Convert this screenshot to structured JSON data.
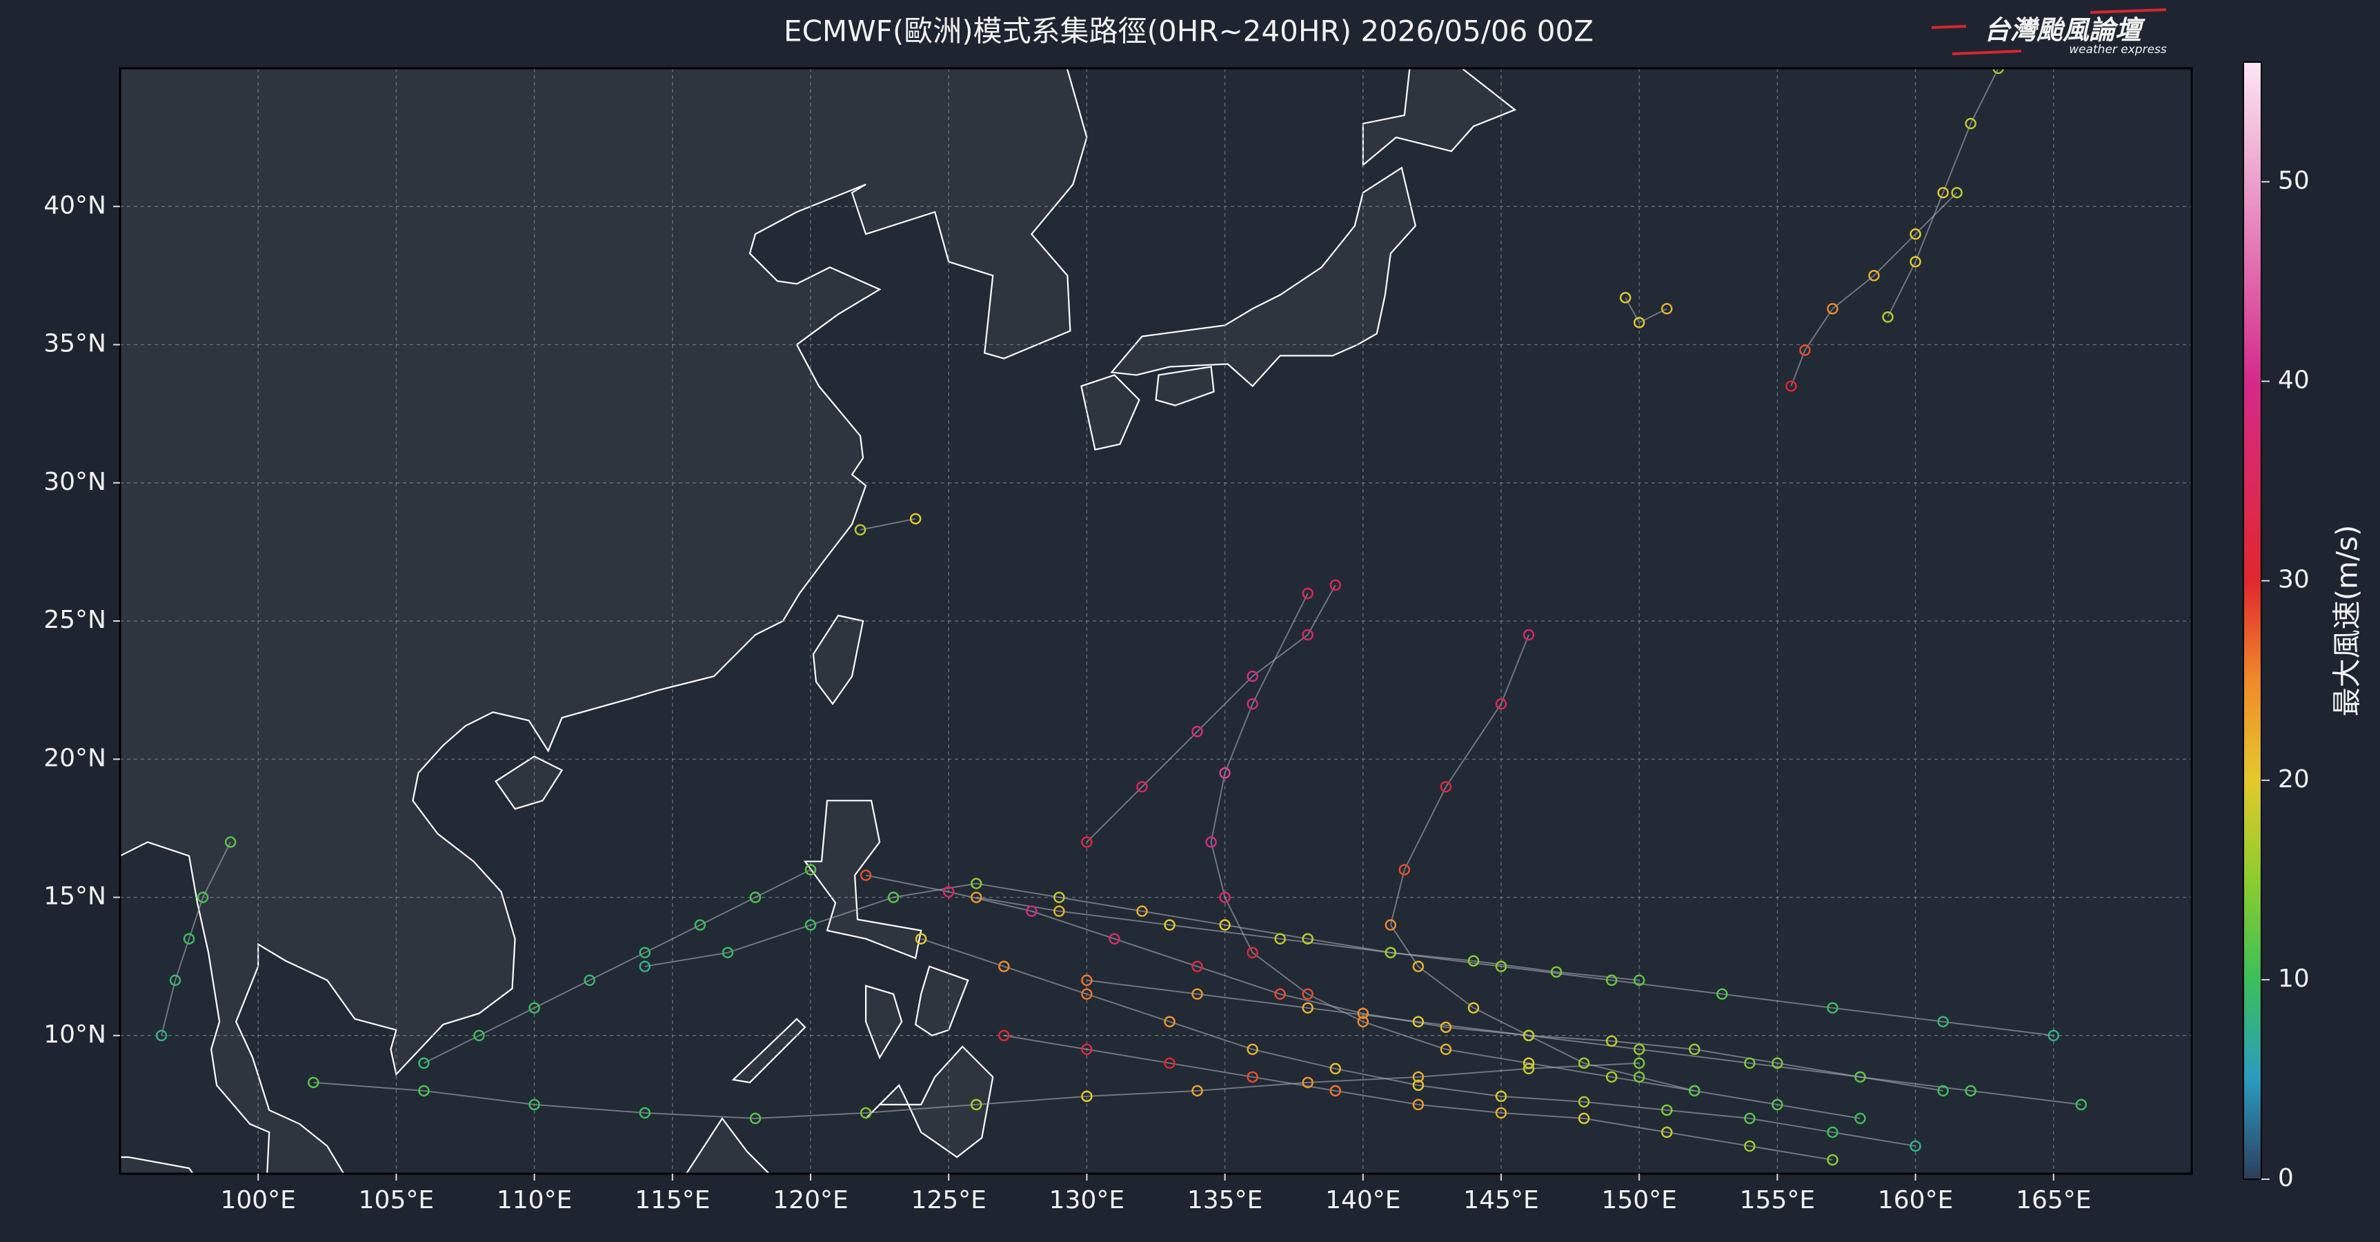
{
  "chart_data": {
    "type": "track-map",
    "title": "ECMWF(歐洲)模式系集路徑(0HR~240HR) 2026/05/06 00Z",
    "logo": {
      "title": "台灣颱風論壇",
      "subtitle": "weather express"
    },
    "xlim": [
      95,
      170
    ],
    "ylim": [
      5,
      45
    ],
    "xticks": [
      {
        "value": 100,
        "label": "100°E"
      },
      {
        "value": 105,
        "label": "105°E"
      },
      {
        "value": 110,
        "label": "110°E"
      },
      {
        "value": 115,
        "label": "115°E"
      },
      {
        "value": 120,
        "label": "120°E"
      },
      {
        "value": 125,
        "label": "125°E"
      },
      {
        "value": 130,
        "label": "130°E"
      },
      {
        "value": 135,
        "label": "135°E"
      },
      {
        "value": 140,
        "label": "140°E"
      },
      {
        "value": 145,
        "label": "145°E"
      },
      {
        "value": 150,
        "label": "150°E"
      },
      {
        "value": 155,
        "label": "155°E"
      },
      {
        "value": 160,
        "label": "160°E"
      },
      {
        "value": 165,
        "label": "165°E"
      }
    ],
    "yticks": [
      {
        "value": 10,
        "label": "10°N"
      },
      {
        "value": 15,
        "label": "15°N"
      },
      {
        "value": 20,
        "label": "20°N"
      },
      {
        "value": 25,
        "label": "25°N"
      },
      {
        "value": 30,
        "label": "30°N"
      },
      {
        "value": 35,
        "label": "35°N"
      },
      {
        "value": 40,
        "label": "40°N"
      }
    ],
    "grid": true,
    "colorbar": {
      "label": "最大風速(m/s)",
      "clim": [
        0,
        56
      ],
      "ticks": [
        0,
        10,
        20,
        30,
        40,
        50
      ],
      "colorscale": [
        {
          "value": 0,
          "color": "#2c3e5c"
        },
        {
          "value": 5,
          "color": "#2a9bc0"
        },
        {
          "value": 10,
          "color": "#3bbf5a"
        },
        {
          "value": 15,
          "color": "#8ccc2e"
        },
        {
          "value": 20,
          "color": "#e3c92b"
        },
        {
          "value": 25,
          "color": "#f08a2a"
        },
        {
          "value": 30,
          "color": "#e0282e"
        },
        {
          "value": 40,
          "color": "#d42a8a"
        },
        {
          "value": 56,
          "color": "#fbe6f2"
        }
      ]
    },
    "tracks": [
      {
        "x": [
          161,
          158,
          155,
          152,
          149,
          146,
          143,
          140,
          137,
          134,
          131,
          128,
          125,
          122
        ],
        "values": [
          8,
          8.5,
          9,
          9.5,
          9.8,
          10,
          10.3,
          10.8,
          11.5,
          12.5,
          13.5,
          14.5,
          15.2,
          15.8
        ],
        "wind": [
          10,
          12,
          14,
          16,
          18,
          20,
          22,
          25,
          28,
          32,
          36,
          40,
          35,
          28
        ]
      },
      {
        "x": [
          160,
          157,
          154,
          151,
          148,
          145,
          142,
          139,
          136,
          133,
          130,
          127,
          124
        ],
        "values": [
          6,
          6.5,
          7,
          7.3,
          7.6,
          7.8,
          8.2,
          8.8,
          9.5,
          10.5,
          11.5,
          12.5,
          13.5
        ],
        "wind": [
          8,
          10,
          12,
          14,
          17,
          19,
          20,
          21,
          22,
          24,
          26,
          25,
          20
        ]
      },
      {
        "x": [
          158,
          155,
          152,
          149,
          146,
          143,
          140,
          138,
          136,
          135,
          134.5,
          135,
          136,
          138
        ],
        "values": [
          7,
          7.5,
          8,
          8.5,
          9,
          9.5,
          10.5,
          11.5,
          13,
          15,
          17,
          19.5,
          22,
          26
        ],
        "wind": [
          10,
          12,
          14,
          17,
          20,
          22,
          25,
          28,
          32,
          36,
          40,
          42,
          38,
          34
        ]
      },
      {
        "x": [
          152,
          150,
          148,
          146,
          144,
          142,
          141,
          141.5,
          143,
          145,
          146
        ],
        "values": [
          8,
          8.5,
          9,
          10,
          11,
          12.5,
          14,
          16,
          19,
          22,
          24.5
        ],
        "wind": [
          12,
          14,
          16,
          18,
          20,
          22,
          25,
          28,
          32,
          34,
          36
        ]
      },
      {
        "x": [
          155.5,
          156,
          157,
          158.5,
          160,
          161.5
        ],
        "values": [
          33.5,
          34.8,
          36.3,
          37.5,
          39,
          40.5
        ],
        "wind": [
          30,
          28,
          25,
          22,
          20,
          18
        ]
      },
      {
        "x": [
          159,
          160,
          161,
          162,
          163
        ],
        "values": [
          36,
          38,
          40.5,
          43,
          45
        ],
        "wind": [
          18,
          20,
          20,
          18,
          16
        ]
      },
      {
        "x": [
          149.5,
          150,
          151
        ],
        "values": [
          36.7,
          35.8,
          36.3
        ],
        "wind": [
          20,
          20,
          22
        ]
      },
      {
        "x": [
          150,
          147,
          144,
          141,
          138,
          135,
          132,
          129,
          126,
          123,
          120,
          117,
          114
        ],
        "values": [
          12,
          12.3,
          12.7,
          13,
          13.5,
          14,
          14.5,
          15,
          15.5,
          15,
          14,
          13,
          12.5
        ],
        "wind": [
          12,
          14,
          15,
          16,
          18,
          20,
          22,
          18,
          15,
          12,
          10,
          9,
          8
        ]
      },
      {
        "x": [
          150,
          146,
          142,
          138,
          134,
          130,
          126,
          122,
          118,
          114,
          110,
          106,
          102
        ],
        "values": [
          9,
          8.8,
          8.5,
          8.3,
          8,
          7.8,
          7.5,
          7.2,
          7,
          7.2,
          7.5,
          8,
          8.3
        ],
        "wind": [
          14,
          18,
          22,
          24,
          23,
          20,
          17,
          14,
          12,
          10,
          10,
          11,
          12
        ]
      },
      {
        "x": [
          166,
          162,
          158,
          154,
          150,
          146,
          142,
          138,
          134,
          130
        ],
        "values": [
          7.5,
          8,
          8.5,
          9,
          9.5,
          10,
          10.5,
          11,
          11.5,
          12
        ],
        "wind": [
          10,
          11,
          12,
          14,
          16,
          18,
          20,
          22,
          24,
          26
        ]
      },
      {
        "x": [
          165,
          161,
          157,
          153,
          149,
          145,
          141,
          137,
          133,
          129,
          126
        ],
        "values": [
          10,
          10.5,
          11,
          11.5,
          12,
          12.5,
          13,
          13.5,
          14,
          14.5,
          15
        ],
        "wind": [
          8,
          9,
          10,
          12,
          13,
          15,
          16,
          18,
          20,
          22,
          24
        ]
      },
      {
        "x": [
          157,
          154,
          151,
          148,
          145,
          142,
          139,
          136,
          133,
          130,
          127
        ],
        "values": [
          5.5,
          6,
          6.5,
          7,
          7.2,
          7.5,
          8,
          8.5,
          9,
          9.5,
          10
        ],
        "wind": [
          15,
          16,
          18,
          20,
          22,
          24,
          26,
          28,
          30,
          32,
          30
        ]
      },
      {
        "x": [
          130,
          132,
          134,
          136,
          138,
          139
        ],
        "values": [
          17,
          19,
          21,
          23,
          24.5,
          26.3
        ],
        "wind": [
          32,
          35,
          38,
          40,
          36,
          34
        ]
      },
      {
        "x": [
          99,
          98,
          97.5,
          97,
          96.5
        ],
        "values": [
          17,
          15,
          13.5,
          12,
          10
        ],
        "wind": [
          12,
          11,
          10,
          9,
          8
        ]
      },
      {
        "x": [
          120,
          118,
          116,
          114,
          112,
          110,
          108,
          106
        ],
        "values": [
          16,
          15,
          14,
          13,
          12,
          11,
          10,
          9
        ],
        "wind": [
          12,
          11,
          10,
          9,
          9,
          10,
          10,
          9
        ]
      },
      {
        "x": [
          121.8,
          123.8
        ],
        "values": [
          28.3,
          28.7
        ],
        "wind": [
          18,
          20
        ]
      }
    ]
  }
}
